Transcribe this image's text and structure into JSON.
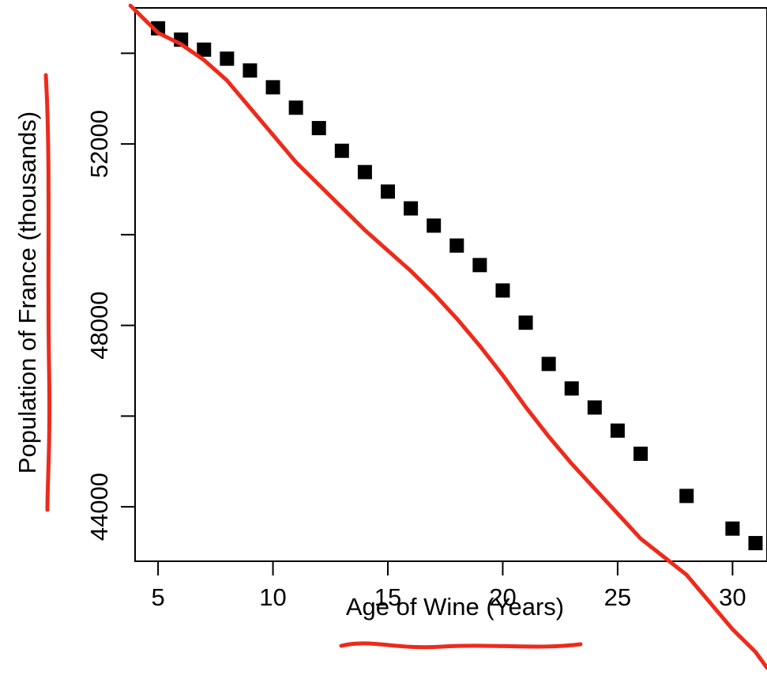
{
  "chart_data": {
    "type": "scatter",
    "xlabel": "Age of Wine (Years)",
    "ylabel": "Population of France (thousands)",
    "xlim": [
      4,
      31.5
    ],
    "ylim": [
      42800,
      55000
    ],
    "x_ticks": [
      5,
      10,
      15,
      20,
      25,
      30
    ],
    "y_ticks": [
      44000,
      48000,
      52000
    ],
    "x_tick_labels": [
      "5",
      "10",
      "15",
      "20",
      "25",
      "30"
    ],
    "y_tick_labels": [
      "44000",
      "48000",
      "52000"
    ],
    "grid": false,
    "marker": "square",
    "marker_color": "#000000",
    "points": [
      {
        "x": 5,
        "y": 54550
      },
      {
        "x": 6,
        "y": 54300
      },
      {
        "x": 7,
        "y": 54080
      },
      {
        "x": 8,
        "y": 53880
      },
      {
        "x": 9,
        "y": 53620
      },
      {
        "x": 10,
        "y": 53250
      },
      {
        "x": 11,
        "y": 52800
      },
      {
        "x": 12,
        "y": 52350
      },
      {
        "x": 13,
        "y": 51850
      },
      {
        "x": 14,
        "y": 51380
      },
      {
        "x": 15,
        "y": 50950
      },
      {
        "x": 16,
        "y": 50580
      },
      {
        "x": 17,
        "y": 50200
      },
      {
        "x": 18,
        "y": 49760
      },
      {
        "x": 19,
        "y": 49330
      },
      {
        "x": 20,
        "y": 48770
      },
      {
        "x": 21,
        "y": 48060
      },
      {
        "x": 22,
        "y": 47150
      },
      {
        "x": 23,
        "y": 46610
      },
      {
        "x": 24,
        "y": 46190
      },
      {
        "x": 25,
        "y": 45680
      },
      {
        "x": 26,
        "y": 45170
      },
      {
        "x": 28,
        "y": 44240
      },
      {
        "x": 30,
        "y": 43520
      },
      {
        "x": 31,
        "y": 43200
      }
    ],
    "annotations": {
      "color": "#ee2a1b",
      "trend_line": [
        {
          "x": 3.8,
          "y": 55050
        },
        {
          "x": 5,
          "y": 54450
        },
        {
          "x": 6,
          "y": 54200
        },
        {
          "x": 7,
          "y": 53850
        },
        {
          "x": 8,
          "y": 53400
        },
        {
          "x": 9,
          "y": 52800
        },
        {
          "x": 10,
          "y": 52200
        },
        {
          "x": 11,
          "y": 51600
        },
        {
          "x": 12,
          "y": 51100
        },
        {
          "x": 13,
          "y": 50600
        },
        {
          "x": 14,
          "y": 50100
        },
        {
          "x": 15,
          "y": 49650
        },
        {
          "x": 16,
          "y": 49200
        },
        {
          "x": 17,
          "y": 48700
        },
        {
          "x": 18,
          "y": 48150
        },
        {
          "x": 19,
          "y": 47550
        },
        {
          "x": 20,
          "y": 46900
        },
        {
          "x": 21,
          "y": 46200
        },
        {
          "x": 22,
          "y": 45550
        },
        {
          "x": 23,
          "y": 44950
        },
        {
          "x": 24,
          "y": 44400
        },
        {
          "x": 25,
          "y": 43850
        },
        {
          "x": 26,
          "y": 43300
        },
        {
          "x": 27,
          "y": 42900
        },
        {
          "x": 28,
          "y": 42500
        },
        {
          "x": 29,
          "y": 41900
        },
        {
          "x": 30,
          "y": 41300
        },
        {
          "x": 31,
          "y": 40800
        },
        {
          "x": 31.5,
          "y": 40450
        }
      ]
    }
  }
}
